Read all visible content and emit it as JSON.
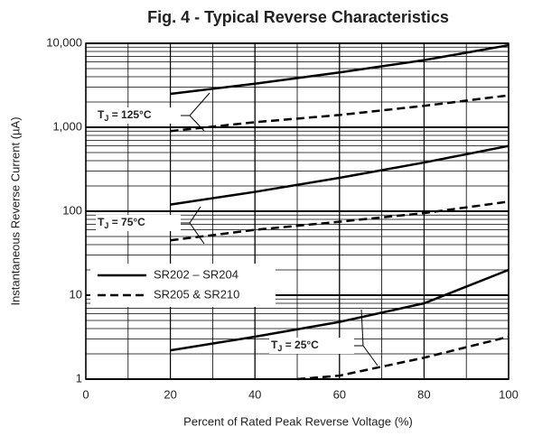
{
  "chart_data": {
    "type": "line",
    "title": "Fig. 4 - Typical Reverse Characteristics",
    "xlabel": "Percent of Rated Peak Reverse Voltage (%)",
    "ylabel": "Instantaneous Reverse Current (µA)",
    "xlim": [
      0,
      100
    ],
    "xticks": [
      0,
      20,
      40,
      60,
      80,
      100
    ],
    "xminor_step": 10,
    "ylim": [
      1,
      10000
    ],
    "yticks": [
      1,
      10,
      100,
      {
        "value": 1000,
        "label": "1,000"
      },
      {
        "value": 10000,
        "label": "10,000"
      }
    ],
    "log_y": true,
    "grid": true,
    "legend_position": "center left",
    "legend": [
      {
        "name": "SR202 – SR204",
        "dash": "solid"
      },
      {
        "name": "SR205 & SR210",
        "dash": "dashed"
      }
    ],
    "annotations": [
      {
        "text": "T",
        "subscript": "J",
        "suffix": " = 125°C"
      },
      {
        "text": "T",
        "subscript": "J",
        "suffix": " = 75°C"
      },
      {
        "text": "T",
        "subscript": "J",
        "suffix": " = 25°C"
      }
    ],
    "series": [
      {
        "legend": 0,
        "annotation": 0,
        "color": "#000000",
        "x": [
          20,
          40,
          60,
          80,
          100
        ],
        "values": [
          2500,
          3300,
          4500,
          6300,
          9500
        ]
      },
      {
        "legend": 1,
        "annotation": 0,
        "color": "#000000",
        "x": [
          20,
          40,
          60,
          80,
          100
        ],
        "values": [
          900,
          1150,
          1400,
          1800,
          2400
        ]
      },
      {
        "legend": 0,
        "annotation": 1,
        "color": "#000000",
        "x": [
          20,
          40,
          60,
          80,
          100
        ],
        "values": [
          120,
          170,
          250,
          380,
          600
        ]
      },
      {
        "legend": 1,
        "annotation": 1,
        "color": "#000000",
        "x": [
          20,
          40,
          60,
          80,
          100
        ],
        "values": [
          45,
          60,
          75,
          95,
          130
        ]
      },
      {
        "legend": 0,
        "annotation": 2,
        "color": "#000000",
        "x": [
          20,
          40,
          60,
          80,
          100
        ],
        "values": [
          2.2,
          3.2,
          4.8,
          8,
          20
        ]
      },
      {
        "legend": 1,
        "annotation": 2,
        "color": "#000000",
        "x": [
          50,
          60,
          80,
          100
        ],
        "values": [
          1,
          1.1,
          1.8,
          3.2
        ]
      }
    ]
  }
}
